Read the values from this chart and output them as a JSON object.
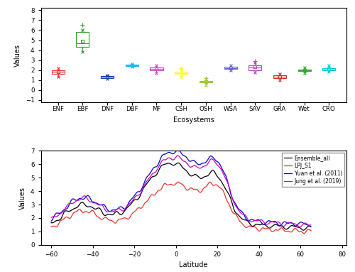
{
  "ecosystems": [
    "ENF",
    "EBF",
    "DNF",
    "DBF",
    "MF",
    "CSH",
    "OSH",
    "WSA",
    "SAV",
    "GRA",
    "Wet",
    "CRO"
  ],
  "box_colors": [
    "#e8322a",
    "#33a02c",
    "#1b3faa",
    "#00bfff",
    "#cc44cc",
    "#ffff00",
    "#9acd32",
    "#6666cc",
    "#bb44bb",
    "#cc3333",
    "#33aa33",
    "#00cccc"
  ],
  "boxes": {
    "ENF": {
      "q1": 1.65,
      "med": 1.82,
      "q3": 1.97,
      "mean": 1.83,
      "whislo": 1.35,
      "whishi": 2.22,
      "fliers_low": [],
      "fliers_high": []
    },
    "EBF": {
      "q1": 4.3,
      "med": 4.7,
      "q3": 5.8,
      "mean": 4.9,
      "whislo": 3.85,
      "whishi": 6.05,
      "fliers_low": [],
      "fliers_high": [
        6.55
      ]
    },
    "DNF": {
      "q1": 1.23,
      "med": 1.35,
      "q3": 1.42,
      "mean": 1.35,
      "whislo": 1.15,
      "whishi": 1.5,
      "fliers_low": [],
      "fliers_high": []
    },
    "DBF": {
      "q1": 2.4,
      "med": 2.47,
      "q3": 2.53,
      "mean": 2.47,
      "whislo": 2.3,
      "whishi": 2.6,
      "fliers_low": [],
      "fliers_high": []
    },
    "MF": {
      "q1": 1.95,
      "med": 2.15,
      "q3": 2.28,
      "mean": 2.1,
      "whislo": 1.7,
      "whishi": 2.48,
      "fliers_low": [],
      "fliers_high": []
    },
    "CSH": {
      "q1": 1.52,
      "med": 1.68,
      "q3": 1.82,
      "mean": 1.7,
      "whislo": 1.35,
      "whishi": 2.05,
      "fliers_low": [],
      "fliers_high": [
        2.22
      ]
    },
    "OSH": {
      "q1": 0.75,
      "med": 0.82,
      "q3": 0.92,
      "mean": 0.82,
      "whislo": 0.52,
      "whishi": 1.1,
      "fliers_low": [],
      "fliers_high": [
        1.22
      ]
    },
    "WSA": {
      "q1": 2.1,
      "med": 2.2,
      "q3": 2.3,
      "mean": 2.2,
      "whislo": 2.0,
      "whishi": 2.45,
      "fliers_low": [],
      "fliers_high": []
    },
    "SAV": {
      "q1": 2.0,
      "med": 2.25,
      "q3": 2.45,
      "mean": 2.3,
      "whislo": 1.75,
      "whishi": 2.75,
      "fliers_low": [],
      "fliers_high": [
        2.92
      ]
    },
    "GRA": {
      "q1": 1.22,
      "med": 1.35,
      "q3": 1.45,
      "mean": 1.35,
      "whislo": 0.95,
      "whishi": 1.62,
      "fliers_low": [],
      "fliers_high": []
    },
    "Wet": {
      "q1": 1.88,
      "med": 1.97,
      "q3": 2.07,
      "mean": 1.97,
      "whislo": 1.72,
      "whishi": 2.25,
      "fliers_low": [],
      "fliers_high": []
    },
    "CRO": {
      "q1": 1.95,
      "med": 2.07,
      "q3": 2.22,
      "mean": 2.1,
      "whislo": 1.82,
      "whishi": 2.45,
      "fliers_low": [],
      "fliers_high": []
    }
  },
  "ylim_upper": [
    -1.2,
    8.2
  ],
  "yticks_upper": [
    -1,
    0,
    1,
    2,
    3,
    4,
    5,
    6,
    7,
    8
  ],
  "ylabel": "Values",
  "xlabel_upper": "Ecosystems",
  "ylim_lower": [
    0,
    7
  ],
  "yticks_lower": [
    0,
    1,
    2,
    3,
    4,
    5,
    6,
    7
  ],
  "xlabel_lower": "Latitude",
  "xlim_lower": [
    -65,
    82
  ],
  "xticks_lower": [
    -60,
    -40,
    -20,
    0,
    20,
    40,
    60,
    80
  ],
  "legend_labels": [
    "Ensemble_all",
    "LPJ_S1",
    "Yuan et al. (2011)",
    "Jung et al. (2019)"
  ],
  "legend_colors": [
    "#000000",
    "#e8322a",
    "#0000cc",
    "#cc00cc"
  ]
}
